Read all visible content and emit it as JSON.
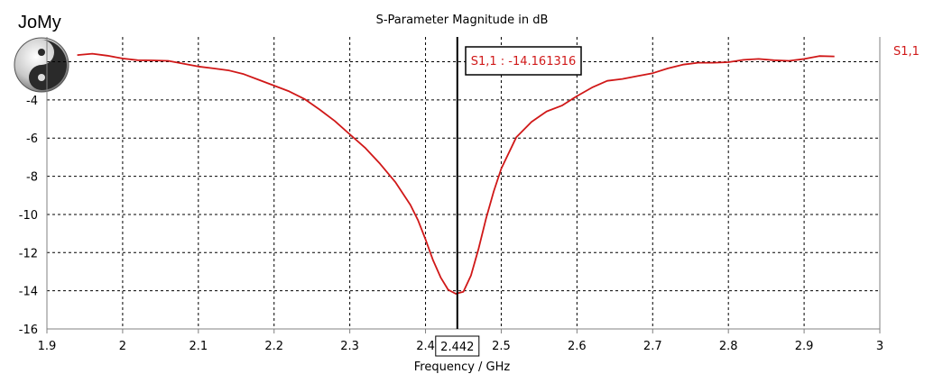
{
  "brand": {
    "name": "JoMy",
    "logo_icon": "yin-yang-icon"
  },
  "colors": {
    "series": "#d01818",
    "marker": "#000000",
    "grid": "#000000",
    "axis": "#808080"
  },
  "chart_data": {
    "type": "line",
    "title": "S-Parameter Magnitude in dB",
    "xlabel": "Frequency / GHz",
    "ylabel": "",
    "xlim": [
      1.9,
      3.0
    ],
    "ylim": [
      -16,
      -0.7
    ],
    "x_ticks": [
      "1.9",
      "2",
      "2.1",
      "2.2",
      "2.3",
      "2.4",
      "2.5",
      "2.6",
      "2.7",
      "2.8",
      "2.9",
      "3"
    ],
    "y_ticks": [
      "-4",
      "-6",
      "-8",
      "-10",
      "-12",
      "-14",
      "-16"
    ],
    "grid": true,
    "legend_position": "top-right",
    "series": [
      {
        "name": "S1,1",
        "x": [
          1.94,
          1.96,
          1.98,
          2.0,
          2.02,
          2.04,
          2.06,
          2.08,
          2.1,
          2.12,
          2.14,
          2.16,
          2.18,
          2.2,
          2.22,
          2.24,
          2.26,
          2.28,
          2.3,
          2.32,
          2.34,
          2.36,
          2.38,
          2.39,
          2.4,
          2.41,
          2.42,
          2.43,
          2.44,
          2.45,
          2.46,
          2.47,
          2.48,
          2.49,
          2.5,
          2.52,
          2.54,
          2.56,
          2.58,
          2.6,
          2.62,
          2.64,
          2.66,
          2.68,
          2.7,
          2.72,
          2.74,
          2.76,
          2.78,
          2.8,
          2.82,
          2.84,
          2.86,
          2.88,
          2.9,
          2.92,
          2.94
        ],
        "y": [
          -1.65,
          -1.58,
          -1.68,
          -1.83,
          -1.92,
          -1.93,
          -1.95,
          -2.1,
          -2.25,
          -2.35,
          -2.45,
          -2.65,
          -2.95,
          -3.25,
          -3.55,
          -3.95,
          -4.5,
          -5.1,
          -5.8,
          -6.5,
          -7.35,
          -8.3,
          -9.5,
          -10.3,
          -11.3,
          -12.4,
          -13.3,
          -13.95,
          -14.16,
          -14.05,
          -13.2,
          -11.8,
          -10.2,
          -8.8,
          -7.6,
          -5.95,
          -5.15,
          -4.6,
          -4.3,
          -3.8,
          -3.35,
          -3.0,
          -2.9,
          -2.75,
          -2.6,
          -2.35,
          -2.15,
          -2.05,
          -2.05,
          -2.02,
          -1.9,
          -1.85,
          -1.92,
          -1.95,
          -1.85,
          -1.7,
          -1.72
        ]
      }
    ],
    "marker": {
      "x": 2.442,
      "x_label": "2.442",
      "label": "S1,1 : -14.161316"
    }
  }
}
